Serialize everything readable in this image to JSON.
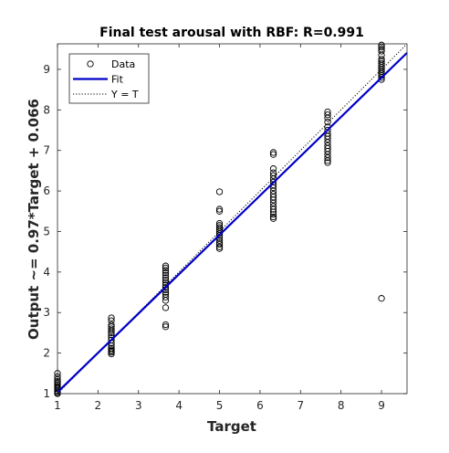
{
  "chart_data": {
    "type": "scatter",
    "title": "Final test arousal with RBF: R=0.991",
    "xlabel": "Target",
    "ylabel": "Output ~= 0.97*Target + 0.066",
    "xlim": [
      1,
      9.63
    ],
    "ylim": [
      1,
      9.63
    ],
    "xticks": [
      "1",
      "2",
      "3",
      "4",
      "5",
      "6",
      "7",
      "8",
      "9"
    ],
    "yticks": [
      "1",
      "2",
      "3",
      "4",
      "5",
      "6",
      "7",
      "8",
      "9"
    ],
    "grid": false,
    "legend_position": "top-left",
    "legend": [
      {
        "label": "Data",
        "kind": "marker"
      },
      {
        "label": "Fit",
        "kind": "solid-line"
      },
      {
        "label": "Y = T",
        "kind": "dotted-line"
      }
    ],
    "fit": {
      "slope": 0.97,
      "intercept": 0.066,
      "color": "#0000c8"
    },
    "identity_color": "#000000",
    "series": [
      {
        "name": "Data",
        "color": "#000000",
        "points": [
          [
            1,
            1.0
          ],
          [
            1,
            1.02
          ],
          [
            1,
            1.05
          ],
          [
            1,
            1.08
          ],
          [
            1,
            1.12
          ],
          [
            1,
            1.15
          ],
          [
            1,
            1.18
          ],
          [
            1,
            1.22
          ],
          [
            1,
            1.26
          ],
          [
            1,
            1.3
          ],
          [
            1,
            1.35
          ],
          [
            1,
            1.42
          ],
          [
            1,
            1.5
          ],
          [
            2.33,
            1.98
          ],
          [
            2.33,
            2.02
          ],
          [
            2.33,
            2.05
          ],
          [
            2.33,
            2.08
          ],
          [
            2.33,
            2.12
          ],
          [
            2.33,
            2.18
          ],
          [
            2.33,
            2.25
          ],
          [
            2.33,
            2.32
          ],
          [
            2.33,
            2.38
          ],
          [
            2.33,
            2.45
          ],
          [
            2.33,
            2.5
          ],
          [
            2.33,
            2.55
          ],
          [
            2.33,
            2.6
          ],
          [
            2.33,
            2.65
          ],
          [
            2.33,
            2.7
          ],
          [
            2.33,
            2.8
          ],
          [
            2.33,
            2.87
          ],
          [
            3.67,
            2.65
          ],
          [
            3.67,
            2.7
          ],
          [
            3.67,
            3.12
          ],
          [
            3.67,
            3.3
          ],
          [
            3.67,
            3.38
          ],
          [
            3.67,
            3.45
          ],
          [
            3.67,
            3.5
          ],
          [
            3.67,
            3.56
          ],
          [
            3.67,
            3.62
          ],
          [
            3.67,
            3.68
          ],
          [
            3.67,
            3.74
          ],
          [
            3.67,
            3.8
          ],
          [
            3.67,
            3.86
          ],
          [
            3.67,
            3.92
          ],
          [
            3.67,
            3.98
          ],
          [
            3.67,
            4.04
          ],
          [
            3.67,
            4.1
          ],
          [
            3.67,
            4.15
          ],
          [
            5,
            4.58
          ],
          [
            5,
            4.62
          ],
          [
            5,
            4.68
          ],
          [
            5,
            4.72
          ],
          [
            5,
            4.78
          ],
          [
            5,
            4.85
          ],
          [
            5,
            4.9
          ],
          [
            5,
            4.95
          ],
          [
            5,
            5.0
          ],
          [
            5,
            5.05
          ],
          [
            5,
            5.1
          ],
          [
            5,
            5.15
          ],
          [
            5,
            5.2
          ],
          [
            5,
            5.5
          ],
          [
            5,
            5.55
          ],
          [
            5,
            5.98
          ],
          [
            6.33,
            5.32
          ],
          [
            6.33,
            5.36
          ],
          [
            6.33,
            5.42
          ],
          [
            6.33,
            5.48
          ],
          [
            6.33,
            5.55
          ],
          [
            6.33,
            5.62
          ],
          [
            6.33,
            5.7
          ],
          [
            6.33,
            5.78
          ],
          [
            6.33,
            5.85
          ],
          [
            6.33,
            5.92
          ],
          [
            6.33,
            6.0
          ],
          [
            6.33,
            6.08
          ],
          [
            6.33,
            6.15
          ],
          [
            6.33,
            6.22
          ],
          [
            6.33,
            6.3
          ],
          [
            6.33,
            6.38
          ],
          [
            6.33,
            6.45
          ],
          [
            6.33,
            6.55
          ],
          [
            6.33,
            6.9
          ],
          [
            6.33,
            6.95
          ],
          [
            7.67,
            6.7
          ],
          [
            7.67,
            6.75
          ],
          [
            7.67,
            6.82
          ],
          [
            7.67,
            6.9
          ],
          [
            7.67,
            6.98
          ],
          [
            7.67,
            7.05
          ],
          [
            7.67,
            7.12
          ],
          [
            7.67,
            7.2
          ],
          [
            7.67,
            7.28
          ],
          [
            7.67,
            7.35
          ],
          [
            7.67,
            7.42
          ],
          [
            7.67,
            7.5
          ],
          [
            7.67,
            7.58
          ],
          [
            7.67,
            7.7
          ],
          [
            7.67,
            7.8
          ],
          [
            7.67,
            7.88
          ],
          [
            7.67,
            7.95
          ],
          [
            9,
            3.35
          ],
          [
            9,
            8.75
          ],
          [
            9,
            8.8
          ],
          [
            9,
            8.85
          ],
          [
            9,
            8.9
          ],
          [
            9,
            8.95
          ],
          [
            9,
            9.0
          ],
          [
            9,
            9.05
          ],
          [
            9,
            9.1
          ],
          [
            9,
            9.15
          ],
          [
            9,
            9.2
          ],
          [
            9,
            9.25
          ],
          [
            9,
            9.35
          ],
          [
            9,
            9.45
          ],
          [
            9,
            9.5
          ],
          [
            9,
            9.55
          ],
          [
            9,
            9.6
          ]
        ]
      }
    ]
  }
}
